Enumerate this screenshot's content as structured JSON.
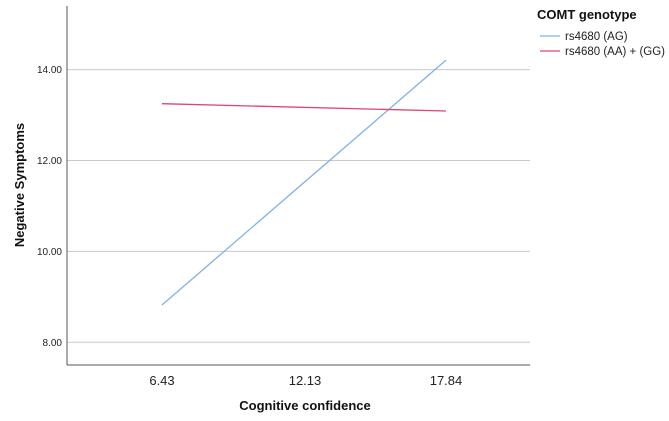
{
  "chart_data": {
    "type": "line",
    "title": "",
    "xlabel": "Cognitive confidence",
    "ylabel": "Negative Symptoms",
    "x_categories": [
      "6.43",
      "12.13",
      "17.84"
    ],
    "x_values": [
      6.43,
      12.13,
      17.84
    ],
    "yticks": [
      "8.00",
      "10.00",
      "12.00",
      "14.00"
    ],
    "ylim": [
      7.5,
      15.4
    ],
    "grid": "horizontal",
    "legend": {
      "title": "COMT genotype",
      "placement": "right"
    },
    "series": [
      {
        "name": "rs4680 (AG)",
        "color": "#7fb2e5",
        "x": [
          6.43,
          17.84
        ],
        "y": [
          8.82,
          14.21
        ]
      },
      {
        "name": "rs4680 (AA) + (GG)",
        "color": "#e0446e",
        "x": [
          6.43,
          17.84
        ],
        "y": [
          13.25,
          13.09
        ]
      }
    ]
  }
}
